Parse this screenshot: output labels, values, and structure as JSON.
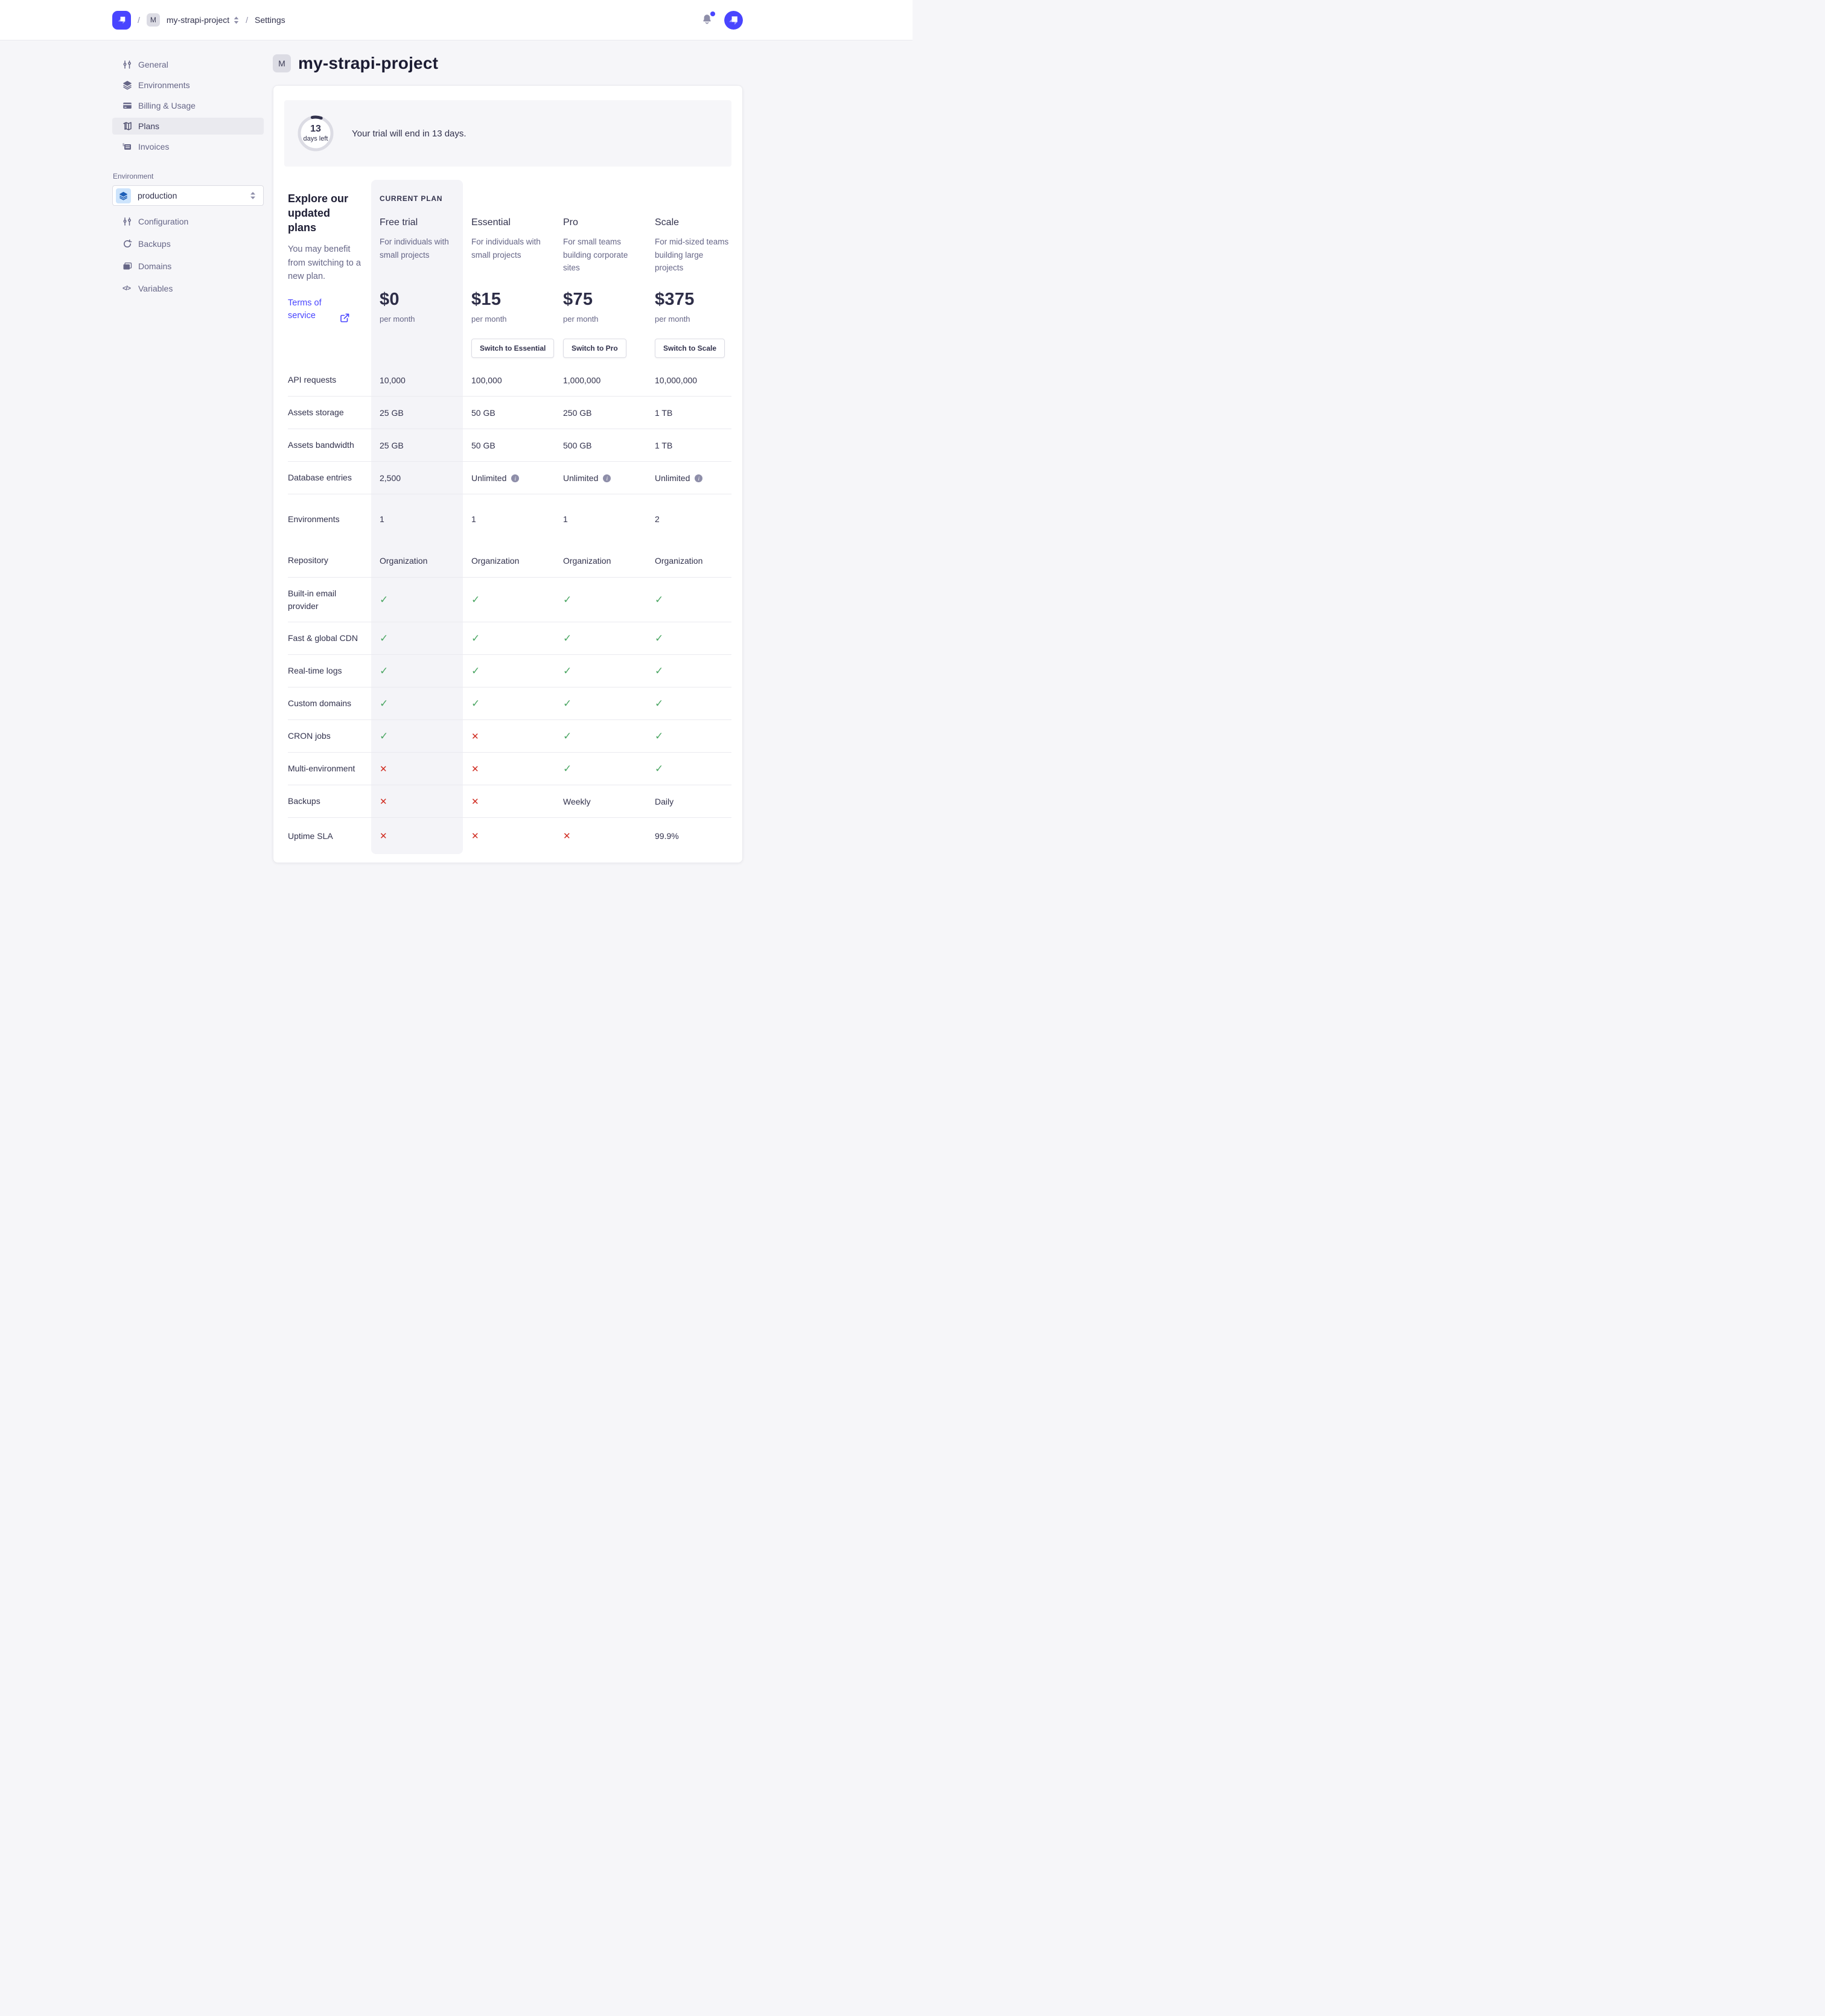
{
  "navbar": {
    "separator": "/",
    "project_badge": "M",
    "project_name": "my-strapi-project",
    "settings_label": "Settings"
  },
  "sidebar": {
    "items": [
      {
        "label": "General",
        "icon": "sliders-icon",
        "active": false
      },
      {
        "label": "Environments",
        "icon": "layers-icon",
        "active": false
      },
      {
        "label": "Billing & Usage",
        "icon": "credit-card-icon",
        "active": false
      },
      {
        "label": "Plans",
        "icon": "map-icon",
        "active": true
      },
      {
        "label": "Invoices",
        "icon": "invoice-icon",
        "active": false
      }
    ],
    "environment": {
      "label": "Environment",
      "selected": "production",
      "items": [
        {
          "label": "Configuration",
          "icon": "sliders-icon"
        },
        {
          "label": "Backups",
          "icon": "refresh-icon"
        },
        {
          "label": "Domains",
          "icon": "folder-icon"
        },
        {
          "label": "Variables",
          "icon": "code-icon"
        }
      ]
    }
  },
  "main": {
    "project_badge": "M",
    "title": "my-strapi-project",
    "trial_banner": {
      "days_number": "13",
      "days_label": "days left",
      "message": "Your trial will end in 13 days."
    },
    "plans_intro": {
      "heading": "Explore our updated plans",
      "body": "You may benefit from switching to a new plan.",
      "link": "Terms of service"
    },
    "current_plan_label": "CURRENT PLAN",
    "plans": [
      {
        "name": "Free trial",
        "description": "For individuals with small projects",
        "price": "$0",
        "period": "per month",
        "button": null,
        "current": true
      },
      {
        "name": "Essential",
        "description": "For individuals with small projects",
        "price": "$15",
        "period": "per month",
        "button": "Switch to Essential",
        "current": false
      },
      {
        "name": "Pro",
        "description": "For small teams building corporate sites",
        "price": "$75",
        "period": "per month",
        "button": "Switch to Pro",
        "current": false
      },
      {
        "name": "Scale",
        "description": "For mid-sized teams building large projects",
        "price": "$375",
        "period": "per month",
        "button": "Switch to Scale",
        "current": false
      }
    ],
    "features": [
      {
        "label": "API requests",
        "cells": [
          {
            "t": "text",
            "v": "10,000"
          },
          {
            "t": "text",
            "v": "100,000"
          },
          {
            "t": "text",
            "v": "1,000,000"
          },
          {
            "t": "text",
            "v": "10,000,000"
          }
        ]
      },
      {
        "label": "Assets storage",
        "cells": [
          {
            "t": "text",
            "v": "25 GB"
          },
          {
            "t": "text",
            "v": "50 GB"
          },
          {
            "t": "text",
            "v": "250 GB"
          },
          {
            "t": "text",
            "v": "1 TB"
          }
        ]
      },
      {
        "label": "Assets bandwidth",
        "cells": [
          {
            "t": "text",
            "v": "25 GB"
          },
          {
            "t": "text",
            "v": "50 GB"
          },
          {
            "t": "text",
            "v": "500 GB"
          },
          {
            "t": "text",
            "v": "1 TB"
          }
        ]
      },
      {
        "label": "Database entries",
        "cells": [
          {
            "t": "text",
            "v": "2,500"
          },
          {
            "t": "info",
            "v": "Unlimited"
          },
          {
            "t": "info",
            "v": "Unlimited"
          },
          {
            "t": "info",
            "v": "Unlimited"
          }
        ]
      },
      {
        "label": "Environments",
        "cells": [
          {
            "t": "text",
            "v": "1"
          },
          {
            "t": "text",
            "v": "1"
          },
          {
            "t": "text",
            "v": "1"
          },
          {
            "t": "text",
            "v": "2"
          }
        ]
      },
      {
        "label": "Repository",
        "cells": [
          {
            "t": "text",
            "v": "Organization"
          },
          {
            "t": "text",
            "v": "Organization"
          },
          {
            "t": "text",
            "v": "Organization"
          },
          {
            "t": "text",
            "v": "Organization"
          }
        ]
      },
      {
        "label": "Built-in email provider",
        "cells": [
          {
            "t": "check"
          },
          {
            "t": "check"
          },
          {
            "t": "check"
          },
          {
            "t": "check"
          }
        ]
      },
      {
        "label": "Fast & global CDN",
        "cells": [
          {
            "t": "check"
          },
          {
            "t": "check"
          },
          {
            "t": "check"
          },
          {
            "t": "check"
          }
        ]
      },
      {
        "label": "Real-time logs",
        "cells": [
          {
            "t": "check"
          },
          {
            "t": "check"
          },
          {
            "t": "check"
          },
          {
            "t": "check"
          }
        ]
      },
      {
        "label": "Custom domains",
        "cells": [
          {
            "t": "check"
          },
          {
            "t": "check"
          },
          {
            "t": "check"
          },
          {
            "t": "check"
          }
        ]
      },
      {
        "label": "CRON jobs",
        "cells": [
          {
            "t": "check"
          },
          {
            "t": "cross"
          },
          {
            "t": "check"
          },
          {
            "t": "check"
          }
        ]
      },
      {
        "label": "Multi-environment",
        "cells": [
          {
            "t": "cross"
          },
          {
            "t": "cross"
          },
          {
            "t": "check"
          },
          {
            "t": "check"
          }
        ]
      },
      {
        "label": "Backups",
        "cells": [
          {
            "t": "cross"
          },
          {
            "t": "cross"
          },
          {
            "t": "text",
            "v": "Weekly"
          },
          {
            "t": "text",
            "v": "Daily"
          }
        ]
      },
      {
        "label": "Uptime SLA",
        "cells": [
          {
            "t": "cross"
          },
          {
            "t": "cross"
          },
          {
            "t": "cross"
          },
          {
            "t": "text",
            "v": "99.9%"
          }
        ]
      }
    ]
  },
  "icons": {
    "check": "✓",
    "cross": "✕",
    "info": "i"
  },
  "colors": {
    "brand": "#4945ff",
    "check_green": "#4ba663",
    "cross_red": "#d02b20"
  }
}
